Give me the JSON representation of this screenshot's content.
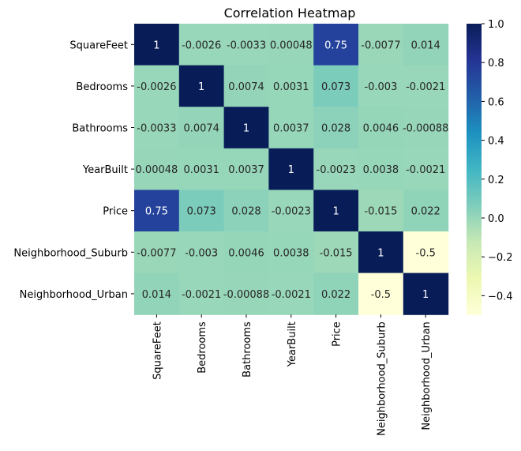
{
  "chart_data": {
    "type": "heatmap",
    "title": "Correlation Heatmap",
    "xlabel": "",
    "ylabel": "",
    "categories": [
      "SquareFeet",
      "Bedrooms",
      "Bathrooms",
      "YearBuilt",
      "Price",
      "Neighborhood_Suburb",
      "Neighborhood_Urban"
    ],
    "values": [
      [
        1,
        -0.0026,
        -0.0033,
        0.00048,
        0.75,
        -0.0077,
        0.014
      ],
      [
        -0.0026,
        1,
        0.0074,
        0.0031,
        0.073,
        -0.003,
        -0.0021
      ],
      [
        -0.0033,
        0.0074,
        1,
        0.0037,
        0.028,
        0.0046,
        -0.00088
      ],
      [
        0.00048,
        0.0031,
        0.0037,
        1,
        -0.0023,
        0.0038,
        -0.0021
      ],
      [
        0.75,
        0.073,
        0.028,
        -0.0023,
        1,
        -0.015,
        0.022
      ],
      [
        -0.0077,
        -0.003,
        0.0046,
        0.0038,
        -0.015,
        1,
        -0.5
      ],
      [
        0.014,
        -0.0021,
        -0.00088,
        -0.0021,
        0.022,
        -0.5,
        1
      ]
    ],
    "annotations": [
      [
        "1",
        "-0.0026",
        "-0.0033",
        "0.00048",
        "0.75",
        "-0.0077",
        "0.014"
      ],
      [
        "-0.0026",
        "1",
        "0.0074",
        "0.0031",
        "0.073",
        "-0.003",
        "-0.0021"
      ],
      [
        "-0.0033",
        "0.0074",
        "1",
        "0.0037",
        "0.028",
        "0.0046",
        "-0.00088"
      ],
      [
        "0.00048",
        "0.0031",
        "0.0037",
        "1",
        "-0.0023",
        "0.0038",
        "-0.0021"
      ],
      [
        "0.75",
        "0.073",
        "0.028",
        "-0.0023",
        "1",
        "-0.015",
        "0.022"
      ],
      [
        "-0.0077",
        "-0.003",
        "0.0046",
        "0.0038",
        "-0.015",
        "1",
        "-0.5"
      ],
      [
        "0.014",
        "-0.0021",
        "-0.00088",
        "-0.0021",
        "0.022",
        "-0.5",
        "1"
      ]
    ],
    "colormap": "YlGnBu",
    "colormap_stops": [
      "#ffffd9",
      "#edf8b1",
      "#c7e9b4",
      "#7fcdbb",
      "#41b6c4",
      "#1d91c0",
      "#225ea8",
      "#253494",
      "#081d58"
    ],
    "vmin": -0.5,
    "vmax": 1.0,
    "colorbar": {
      "ticks": [
        1.0,
        0.8,
        0.6,
        0.4,
        0.2,
        0.0,
        -0.2,
        -0.4
      ],
      "tick_labels": [
        "1.0",
        "0.8",
        "0.6",
        "0.4",
        "0.2",
        "0.0",
        "−0.2",
        "−0.4"
      ],
      "position": "right"
    },
    "grid": false
  }
}
